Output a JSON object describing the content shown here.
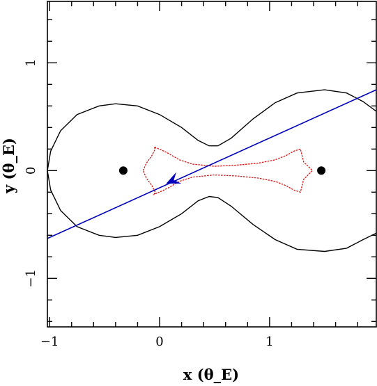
{
  "chart_data": {
    "type": "line",
    "title": "",
    "xlabel": "x (θ_E)",
    "ylabel": "y (θ_E)",
    "xlim": [
      -1.02,
      1.97
    ],
    "ylim": [
      -1.45,
      1.57
    ],
    "x_ticks": [
      -1,
      0,
      1
    ],
    "y_ticks": [
      -1,
      0,
      1
    ],
    "x_tick_labels": [
      "−1",
      "0",
      "1"
    ],
    "y_tick_labels": [
      "−1",
      "0",
      "1"
    ],
    "grid": false,
    "colors": {
      "critical_curve": "#000000",
      "caustic": "#dd1111",
      "trajectory": "#0000bb",
      "lens": "#000000"
    },
    "lenses": [
      {
        "x": -0.33,
        "y": 0.0
      },
      {
        "x": 1.47,
        "y": 0.0
      }
    ],
    "trajectory": {
      "start": [
        -1.02,
        -0.63
      ],
      "end": [
        1.97,
        0.75
      ],
      "arrow_at": [
        0.06,
        -0.12
      ]
    },
    "critical_curve_upper": [
      [
        -1.02,
        0.0
      ],
      [
        -0.99,
        0.18
      ],
      [
        -0.9,
        0.37
      ],
      [
        -0.75,
        0.52
      ],
      [
        -0.55,
        0.6
      ],
      [
        -0.4,
        0.62
      ],
      [
        -0.2,
        0.6
      ],
      [
        0.0,
        0.52
      ],
      [
        0.2,
        0.4
      ],
      [
        0.35,
        0.28
      ],
      [
        0.45,
        0.23
      ],
      [
        0.53,
        0.23
      ],
      [
        0.65,
        0.3
      ],
      [
        0.85,
        0.48
      ],
      [
        1.05,
        0.63
      ],
      [
        1.25,
        0.72
      ],
      [
        1.5,
        0.75
      ],
      [
        1.7,
        0.72
      ],
      [
        1.85,
        0.64
      ],
      [
        1.97,
        0.55
      ]
    ],
    "critical_curve_lower": [
      [
        -1.02,
        0.0
      ],
      [
        -0.99,
        -0.18
      ],
      [
        -0.9,
        -0.37
      ],
      [
        -0.75,
        -0.52
      ],
      [
        -0.55,
        -0.6
      ],
      [
        -0.4,
        -0.62
      ],
      [
        -0.2,
        -0.6
      ],
      [
        0.0,
        -0.52
      ],
      [
        0.2,
        -0.4
      ],
      [
        0.35,
        -0.28
      ],
      [
        0.45,
        -0.24
      ],
      [
        0.53,
        -0.25
      ],
      [
        0.65,
        -0.33
      ],
      [
        0.85,
        -0.5
      ],
      [
        1.05,
        -0.64
      ],
      [
        1.25,
        -0.73
      ],
      [
        1.5,
        -0.75
      ],
      [
        1.7,
        -0.72
      ],
      [
        1.85,
        -0.64
      ],
      [
        1.97,
        -0.58
      ]
    ],
    "caustic": [
      [
        -0.15,
        0.0
      ],
      [
        -0.12,
        0.07
      ],
      [
        -0.07,
        0.14
      ],
      [
        -0.04,
        0.2
      ],
      [
        -0.05,
        0.22
      ],
      [
        0.02,
        0.19
      ],
      [
        0.08,
        0.16
      ],
      [
        0.18,
        0.1
      ],
      [
        0.3,
        0.06
      ],
      [
        0.5,
        0.04
      ],
      [
        0.7,
        0.05
      ],
      [
        0.9,
        0.07
      ],
      [
        1.05,
        0.1
      ],
      [
        1.15,
        0.14
      ],
      [
        1.22,
        0.18
      ],
      [
        1.28,
        0.2
      ],
      [
        1.29,
        0.16
      ],
      [
        1.31,
        0.08
      ],
      [
        1.36,
        0.03
      ],
      [
        1.39,
        0.0
      ],
      [
        1.36,
        -0.03
      ],
      [
        1.31,
        -0.08
      ],
      [
        1.29,
        -0.16
      ],
      [
        1.28,
        -0.2
      ],
      [
        1.22,
        -0.18
      ],
      [
        1.15,
        -0.14
      ],
      [
        1.05,
        -0.1
      ],
      [
        0.9,
        -0.07
      ],
      [
        0.7,
        -0.05
      ],
      [
        0.5,
        -0.04
      ],
      [
        0.3,
        -0.06
      ],
      [
        0.18,
        -0.1
      ],
      [
        0.08,
        -0.16
      ],
      [
        0.02,
        -0.19
      ],
      [
        -0.05,
        -0.22
      ],
      [
        -0.04,
        -0.2
      ],
      [
        -0.07,
        -0.14
      ],
      [
        -0.12,
        -0.07
      ],
      [
        -0.15,
        0.0
      ]
    ]
  }
}
